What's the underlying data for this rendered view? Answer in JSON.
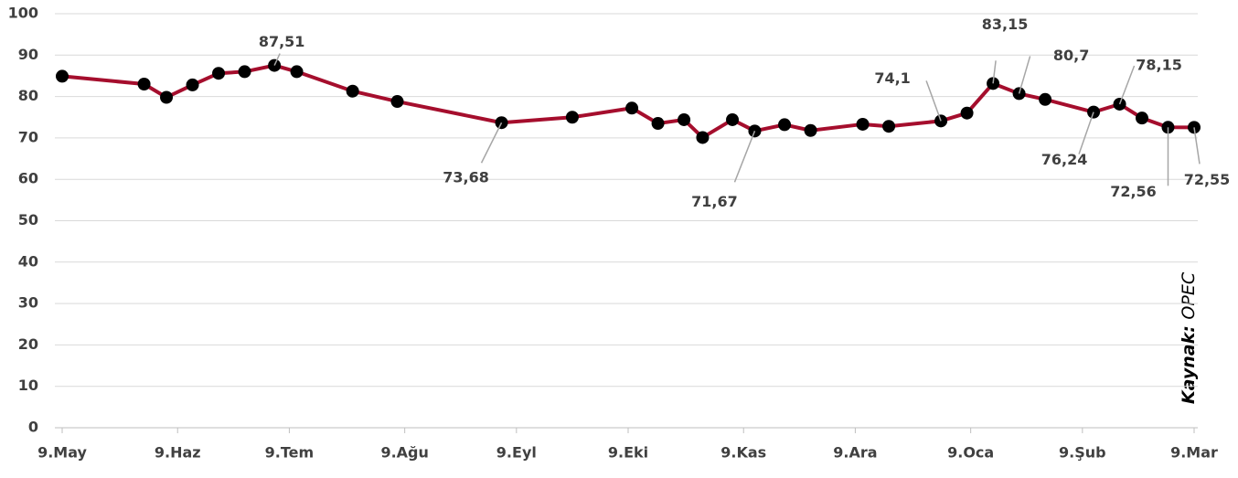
{
  "chart_data": {
    "type": "line",
    "x": [
      0,
      22,
      28,
      35,
      42,
      49,
      57,
      63,
      78,
      90,
      118,
      137,
      153,
      160,
      167,
      172,
      180,
      186,
      194,
      201,
      215,
      222,
      236,
      243,
      250,
      257,
      264,
      277,
      284,
      290,
      297,
      304
    ],
    "series": [
      {
        "name": "OPEC",
        "color": "#a50e2d",
        "values": [
          84.9,
          83.0,
          79.8,
          82.8,
          85.6,
          86.0,
          87.51,
          86.0,
          81.3,
          78.8,
          73.68,
          75.0,
          77.2,
          73.5,
          74.4,
          70.1,
          74.4,
          71.67,
          73.2,
          71.8,
          73.3,
          72.8,
          74.1,
          76.0,
          83.15,
          80.7,
          79.3,
          76.24,
          78.15,
          74.8,
          72.56,
          72.55
        ],
        "value_labels": [
          null,
          null,
          null,
          null,
          null,
          null,
          "87,51",
          null,
          null,
          null,
          "73,68",
          null,
          null,
          null,
          null,
          null,
          null,
          "71,67",
          null,
          null,
          null,
          null,
          "74,1",
          null,
          "83,15",
          "80,7",
          null,
          "76,24",
          "78,15",
          null,
          "72,56",
          "72,55"
        ]
      }
    ],
    "xlim": [
      0,
      304
    ],
    "xticks": [
      {
        "value": 0,
        "label": "9.May"
      },
      {
        "value": 31,
        "label": "9.Haz"
      },
      {
        "value": 61,
        "label": "9.Tem"
      },
      {
        "value": 92,
        "label": "9.Ağu"
      },
      {
        "value": 122,
        "label": "9.Eyl"
      },
      {
        "value": 152,
        "label": "9.Eki"
      },
      {
        "value": 183,
        "label": "9.Kas"
      },
      {
        "value": 213,
        "label": "9.Ara"
      },
      {
        "value": 244,
        "label": "9.Oca"
      },
      {
        "value": 274,
        "label": "9.Şub"
      },
      {
        "value": 304,
        "label": "9.Mar"
      }
    ],
    "ylim": [
      0,
      100
    ],
    "yticks": [
      0,
      10,
      20,
      30,
      40,
      50,
      60,
      70,
      80,
      90,
      100
    ],
    "grid": true,
    "annotations": {
      "source_label": "Kaynak:",
      "source": "OPEC"
    }
  }
}
